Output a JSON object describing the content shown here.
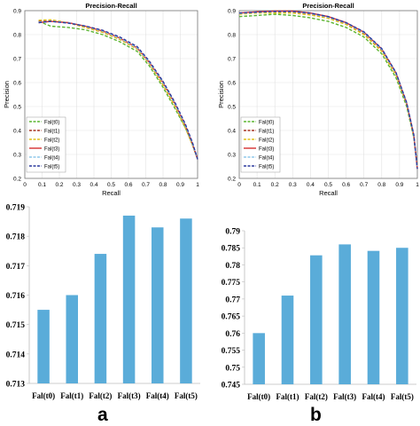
{
  "panel_labels": [
    "a",
    "b"
  ],
  "chart_data": [
    {
      "type": "line",
      "panel": "a",
      "title": "Precision-Recall",
      "xlabel": "Recall",
      "ylabel": "Precision",
      "xlim": [
        0,
        1
      ],
      "ylim": [
        0.2,
        0.9
      ],
      "xticks": [
        "0",
        "0.1",
        "0.2",
        "0.3",
        "0.4",
        "0.5",
        "0.6",
        "0.7",
        "0.8",
        "0.9",
        "1"
      ],
      "yticks": [
        "0.2",
        "0.3",
        "0.4",
        "0.5",
        "0.6",
        "0.7",
        "0.8",
        "0.9"
      ],
      "grid": true,
      "legend_position": "bottom-left",
      "series": [
        {
          "name": "Fal(t0)",
          "color": "#5cb531",
          "dash": "dashed",
          "x": [
            0.08,
            0.15,
            0.25,
            0.35,
            0.45,
            0.55,
            0.65,
            0.72,
            0.8,
            0.87,
            0.93,
            0.97,
            1.0
          ],
          "y": [
            0.855,
            0.835,
            0.83,
            0.82,
            0.8,
            0.77,
            0.73,
            0.67,
            0.58,
            0.49,
            0.41,
            0.34,
            0.28
          ]
        },
        {
          "name": "Fal(t1)",
          "color": "#a63320",
          "dash": "dashed",
          "x": [
            0.08,
            0.15,
            0.25,
            0.35,
            0.45,
            0.55,
            0.65,
            0.72,
            0.8,
            0.87,
            0.93,
            0.97,
            1.0
          ],
          "y": [
            0.855,
            0.858,
            0.85,
            0.83,
            0.81,
            0.78,
            0.74,
            0.68,
            0.59,
            0.5,
            0.41,
            0.34,
            0.28
          ]
        },
        {
          "name": "Fal(t2)",
          "color": "#e0c21a",
          "dash": "dashed",
          "x": [
            0.08,
            0.15,
            0.25,
            0.35,
            0.45,
            0.55,
            0.65,
            0.72,
            0.8,
            0.87,
            0.93,
            0.97,
            1.0
          ],
          "y": [
            0.86,
            0.862,
            0.85,
            0.83,
            0.81,
            0.78,
            0.74,
            0.68,
            0.59,
            0.5,
            0.41,
            0.34,
            0.28
          ]
        },
        {
          "name": "Fal(t3)",
          "color": "#d62f2f",
          "dash": "solid",
          "x": [
            0.08,
            0.15,
            0.25,
            0.35,
            0.45,
            0.55,
            0.65,
            0.72,
            0.8,
            0.87,
            0.93,
            0.97,
            1.0
          ],
          "y": [
            0.85,
            0.855,
            0.85,
            0.835,
            0.815,
            0.785,
            0.745,
            0.685,
            0.6,
            0.51,
            0.42,
            0.345,
            0.28
          ]
        },
        {
          "name": "Fal(t4)",
          "color": "#8fc8ea",
          "dash": "dashed",
          "x": [
            0.08,
            0.15,
            0.25,
            0.35,
            0.45,
            0.55,
            0.65,
            0.72,
            0.8,
            0.87,
            0.93,
            0.97,
            1.0
          ],
          "y": [
            0.852,
            0.856,
            0.85,
            0.835,
            0.815,
            0.785,
            0.745,
            0.685,
            0.6,
            0.51,
            0.42,
            0.345,
            0.28
          ]
        },
        {
          "name": "Fal(t5)",
          "color": "#2b3a9e",
          "dash": "dashed",
          "x": [
            0.08,
            0.15,
            0.25,
            0.35,
            0.45,
            0.55,
            0.65,
            0.72,
            0.8,
            0.87,
            0.93,
            0.97,
            1.0
          ],
          "y": [
            0.85,
            0.855,
            0.848,
            0.836,
            0.818,
            0.79,
            0.75,
            0.69,
            0.605,
            0.515,
            0.425,
            0.35,
            0.28
          ]
        }
      ]
    },
    {
      "type": "line",
      "panel": "b",
      "title": "Precision-Recall",
      "xlabel": "Recall",
      "ylabel": "Precision",
      "xlim": [
        0,
        1
      ],
      "ylim": [
        0.2,
        0.9
      ],
      "xticks": [
        "0",
        "0.1",
        "0.2",
        "0.3",
        "0.4",
        "0.5",
        "0.6",
        "0.7",
        "0.8",
        "0.9",
        "1"
      ],
      "yticks": [
        "0.2",
        "0.3",
        "0.4",
        "0.5",
        "0.6",
        "0.7",
        "0.8",
        "0.9"
      ],
      "grid": true,
      "legend_position": "bottom-left",
      "series": [
        {
          "name": "Fal(t0)",
          "color": "#5cb531",
          "dash": "dashed",
          "x": [
            0.0,
            0.1,
            0.2,
            0.3,
            0.4,
            0.5,
            0.6,
            0.7,
            0.8,
            0.88,
            0.94,
            0.98,
            1.0
          ],
          "y": [
            0.875,
            0.88,
            0.885,
            0.88,
            0.87,
            0.855,
            0.83,
            0.79,
            0.72,
            0.62,
            0.5,
            0.37,
            0.25
          ]
        },
        {
          "name": "Fal(t1)",
          "color": "#a63320",
          "dash": "dashed",
          "x": [
            0.0,
            0.1,
            0.2,
            0.3,
            0.4,
            0.5,
            0.6,
            0.7,
            0.8,
            0.88,
            0.94,
            0.98,
            1.0
          ],
          "y": [
            0.89,
            0.893,
            0.895,
            0.893,
            0.885,
            0.87,
            0.845,
            0.805,
            0.735,
            0.635,
            0.51,
            0.38,
            0.24
          ]
        },
        {
          "name": "Fal(t2)",
          "color": "#e0c21a",
          "dash": "dashed",
          "x": [
            0.0,
            0.1,
            0.2,
            0.3,
            0.4,
            0.5,
            0.6,
            0.7,
            0.8,
            0.88,
            0.94,
            0.98,
            1.0
          ],
          "y": [
            0.885,
            0.89,
            0.89,
            0.89,
            0.882,
            0.868,
            0.842,
            0.8,
            0.73,
            0.63,
            0.51,
            0.375,
            0.24
          ]
        },
        {
          "name": "Fal(t3)",
          "color": "#d62f2f",
          "dash": "solid",
          "x": [
            0.0,
            0.1,
            0.2,
            0.3,
            0.4,
            0.5,
            0.6,
            0.7,
            0.8,
            0.88,
            0.94,
            0.98,
            1.0
          ],
          "y": [
            0.89,
            0.895,
            0.898,
            0.898,
            0.89,
            0.875,
            0.85,
            0.81,
            0.74,
            0.64,
            0.515,
            0.38,
            0.24
          ]
        },
        {
          "name": "Fal(t4)",
          "color": "#8fc8ea",
          "dash": "dashed",
          "x": [
            0.0,
            0.1,
            0.2,
            0.3,
            0.4,
            0.5,
            0.6,
            0.7,
            0.8,
            0.88,
            0.94,
            0.98,
            1.0
          ],
          "y": [
            0.888,
            0.893,
            0.896,
            0.896,
            0.888,
            0.873,
            0.848,
            0.808,
            0.738,
            0.638,
            0.513,
            0.378,
            0.24
          ]
        },
        {
          "name": "Fal(t5)",
          "color": "#2b3a9e",
          "dash": "dashed",
          "x": [
            0.0,
            0.1,
            0.2,
            0.3,
            0.4,
            0.5,
            0.6,
            0.7,
            0.8,
            0.88,
            0.94,
            0.98,
            1.0
          ],
          "y": [
            0.89,
            0.894,
            0.897,
            0.897,
            0.89,
            0.875,
            0.85,
            0.812,
            0.742,
            0.642,
            0.517,
            0.382,
            0.24
          ]
        }
      ]
    },
    {
      "type": "bar",
      "panel": "a",
      "categories": [
        "Fal(t0)",
        "Fal(t1)",
        "Fal(t2)",
        "Fal(t3)",
        "Fal(t4)",
        "Fal(t5)"
      ],
      "values": [
        0.7155,
        0.716,
        0.7174,
        0.7187,
        0.7183,
        0.7186
      ],
      "ylim": [
        0.713,
        0.719
      ],
      "yticks": [
        "0.713",
        "0.714",
        "0.715",
        "0.716",
        "0.717",
        "0.718",
        "0.719"
      ],
      "bar_color": "#5aacd9",
      "grid": false
    },
    {
      "type": "bar",
      "panel": "b",
      "categories": [
        "Fal(t0)",
        "Fal(t1)",
        "Fal(t2)",
        "Fal(t3)",
        "Fal(t4)",
        "Fal(t5)"
      ],
      "values": [
        0.76,
        0.771,
        0.7828,
        0.786,
        0.7841,
        0.785
      ],
      "ylim": [
        0.745,
        0.79
      ],
      "yticks": [
        "0.745",
        "0.75",
        "0.755",
        "0.76",
        "0.765",
        "0.77",
        "0.775",
        "0.78",
        "0.785",
        "0.79"
      ],
      "bar_color": "#5aacd9",
      "grid": false
    }
  ]
}
